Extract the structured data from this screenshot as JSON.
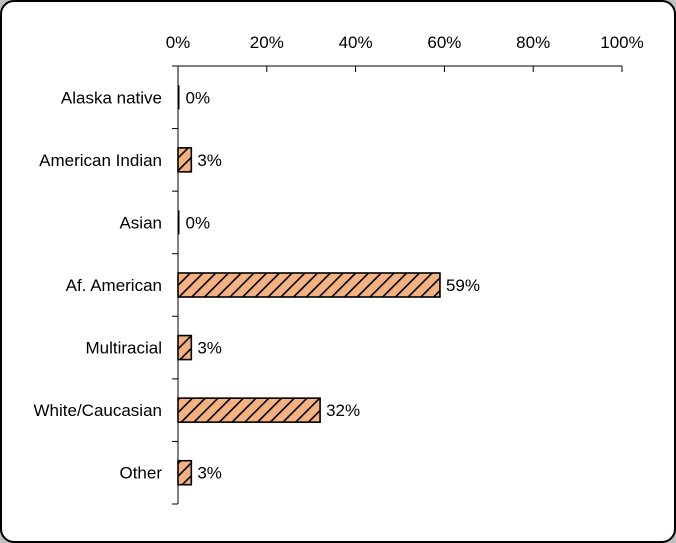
{
  "chart_data": {
    "type": "bar",
    "orientation": "horizontal",
    "categories": [
      "Alaska native",
      "American Indian",
      "Asian",
      "Af. American",
      "Multiracial",
      "White/Caucasian",
      "Other"
    ],
    "values": [
      0,
      3,
      0,
      59,
      3,
      32,
      3
    ],
    "value_labels": [
      "0%",
      "3%",
      "0%",
      "59%",
      "3%",
      "32%",
      "3%"
    ],
    "xlim": [
      0,
      100
    ],
    "xticks": [
      "0%",
      "20%",
      "40%",
      "60%",
      "80%",
      "100%"
    ],
    "x_axis_position": "top",
    "grid": false,
    "legend": "none",
    "title": "",
    "xlabel": "",
    "ylabel": "",
    "bar_fill": "#f4b183",
    "bar_hatch": "#000000"
  }
}
